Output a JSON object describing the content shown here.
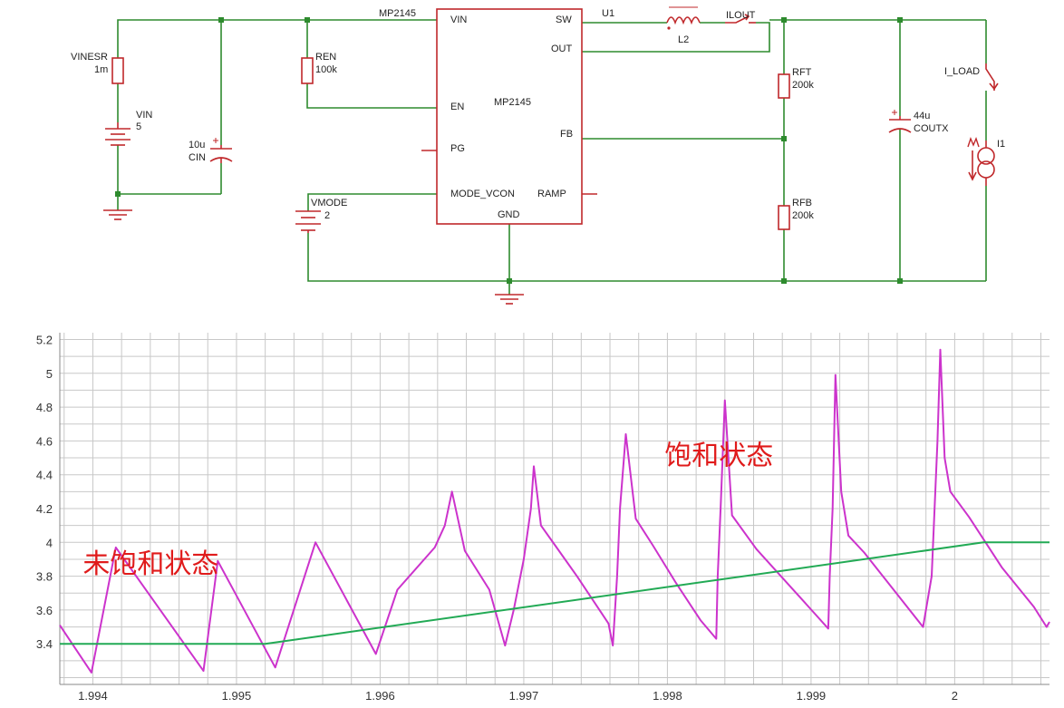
{
  "colors": {
    "wire": "#2e8b2e",
    "part": "#c0282b",
    "text": "#222222",
    "grid": "#c8c8c8",
    "inductor_current": "#cc33cc",
    "load_current": "#22aa55",
    "annotation": "#e01b1b"
  },
  "schematic": {
    "chip": {
      "name": "MP2145",
      "ref": "U1",
      "center_label": "MP2145",
      "pins": {
        "vin": "VIN",
        "en": "EN",
        "pg": "PG",
        "mode": "MODE_VCON",
        "gnd": "GND",
        "sw": "SW",
        "out": "OUT",
        "fb": "FB",
        "ramp": "RAMP"
      }
    },
    "components": {
      "vinesr": {
        "name": "VINESR",
        "value": "1m"
      },
      "vin": {
        "name": "VIN",
        "value": "5"
      },
      "cin": {
        "name": "CIN",
        "value": "10u"
      },
      "ren": {
        "name": "REN",
        "value": "100k"
      },
      "vmode": {
        "name": "VMODE",
        "value": "2"
      },
      "l2": {
        "name": "L2"
      },
      "ilout": {
        "name": "ILOUT"
      },
      "rft": {
        "name": "RFT",
        "value": "200k"
      },
      "rfb": {
        "name": "RFB",
        "value": "200k"
      },
      "coutx": {
        "name": "COUTX",
        "value": "44u"
      },
      "i_load": {
        "name": "I_LOAD"
      },
      "i1": {
        "name": "I1"
      }
    }
  },
  "chart_data": {
    "type": "line",
    "x_ticks": [
      "1.994",
      "1.995",
      "1.996",
      "1.997",
      "1.998",
      "1.999",
      "2"
    ],
    "y_ticks": [
      "3.4",
      "3.6",
      "3.8",
      "4",
      "4.2",
      "4.4",
      "4.6",
      "4.8",
      "5",
      "5.2"
    ],
    "xlim": [
      1.99377,
      2.00066
    ],
    "ylim": [
      3.16,
      5.24
    ],
    "grid": true,
    "series": [
      {
        "color": "inductor_current",
        "x": [
          1.99377,
          1.99399,
          1.99416,
          1.99477,
          1.99487,
          1.99527,
          1.99555,
          1.99597,
          1.99612,
          1.99638,
          1.99645,
          1.9965,
          1.99659,
          1.99676,
          1.99687,
          1.99693,
          1.997,
          1.99705,
          1.99707,
          1.99712,
          1.99722,
          1.99737,
          1.99748,
          1.99759,
          1.99762,
          1.99765,
          1.99767,
          1.99771,
          1.99778,
          1.9979,
          1.99806,
          1.99823,
          1.99834,
          1.99835,
          1.99837,
          1.9984,
          1.99845,
          1.99862,
          1.99895,
          1.99912,
          1.99913,
          1.99915,
          1.99917,
          1.99921,
          1.99926,
          1.99937,
          1.99978,
          1.99984,
          1.99986,
          1.99988,
          1.9999,
          1.99993,
          1.99997,
          2.0001,
          2.00033,
          2.00055,
          2.00064,
          2.00066
        ],
        "y": [
          3.51,
          3.23,
          3.97,
          3.24,
          3.89,
          3.26,
          4.0,
          3.34,
          3.72,
          3.97,
          4.1,
          4.3,
          3.95,
          3.72,
          3.39,
          3.6,
          3.9,
          4.2,
          4.45,
          4.1,
          3.98,
          3.8,
          3.66,
          3.52,
          3.39,
          3.8,
          4.2,
          4.64,
          4.14,
          3.98,
          3.76,
          3.54,
          3.43,
          3.8,
          4.2,
          4.84,
          4.16,
          3.96,
          3.65,
          3.49,
          3.8,
          4.2,
          4.99,
          4.3,
          4.04,
          3.94,
          3.5,
          3.8,
          4.2,
          4.6,
          5.14,
          4.5,
          4.3,
          4.15,
          3.85,
          3.62,
          3.5,
          3.53
        ]
      },
      {
        "color": "load_current",
        "x": [
          1.99377,
          1.9952,
          2.0002,
          2.00066
        ],
        "y": [
          3.4,
          3.4,
          4.0,
          4.0
        ]
      }
    ],
    "annotations": [
      {
        "text": "未饱和状态",
        "x": 1.99393,
        "y": 3.82
      },
      {
        "text": "饱和状态",
        "x": 1.99798,
        "y": 4.46
      }
    ]
  }
}
